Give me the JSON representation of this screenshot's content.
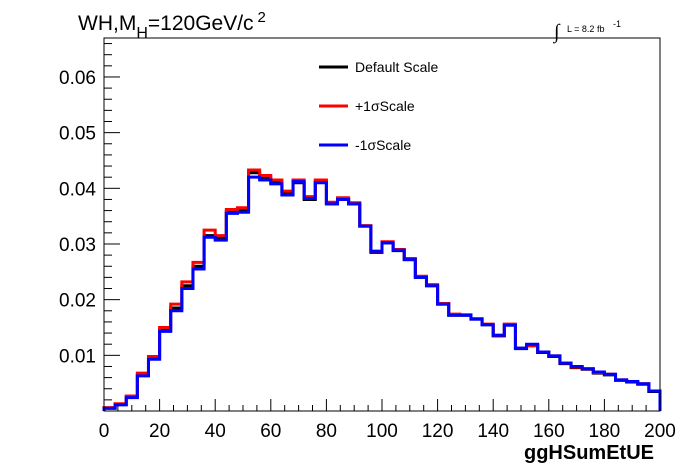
{
  "chart_data": {
    "type": "line",
    "step": true,
    "title_parts": {
      "main": "WH,M",
      "sub": "H",
      "rest": "=120GeV/c",
      "sup": "2"
    },
    "lumi_parts": {
      "integral": "∫",
      "text": "L = 8.2 fb",
      "sup": "-1"
    },
    "xlabel": "ggHSumEtUE",
    "ylabel": "",
    "xlim": [
      0,
      200
    ],
    "ylim": [
      0,
      0.067
    ],
    "x_ticks": [
      "0",
      "20",
      "40",
      "60",
      "80",
      "100",
      "120",
      "140",
      "160",
      "180",
      "200"
    ],
    "y_ticks": [
      "0.01",
      "0.02",
      "0.03",
      "0.04",
      "0.05",
      "0.06"
    ],
    "grid": false,
    "legend_position": "top-center",
    "bin_edges": [
      0,
      4,
      8,
      12,
      16,
      20,
      24,
      28,
      32,
      36,
      40,
      44,
      48,
      52,
      56,
      60,
      64,
      68,
      72,
      76,
      80,
      84,
      88,
      92,
      96,
      100,
      104,
      108,
      112,
      116,
      120,
      124,
      128,
      132,
      136,
      140,
      144,
      148,
      152,
      156,
      160,
      164,
      168,
      172,
      176,
      180,
      184,
      188,
      192,
      196,
      200
    ],
    "series": [
      {
        "name": "Default Scale",
        "color": "#000000",
        "values": [
          0.0005,
          0.0012,
          0.0025,
          0.0065,
          0.0095,
          0.0145,
          0.0185,
          0.0225,
          0.026,
          0.0315,
          0.031,
          0.0358,
          0.036,
          0.0428,
          0.0418,
          0.041,
          0.039,
          0.041,
          0.038,
          0.0412,
          0.0372,
          0.038,
          0.0372,
          0.0332,
          0.0285,
          0.0302,
          0.0288,
          0.0272,
          0.024,
          0.0225,
          0.0192,
          0.0172,
          0.0172,
          0.0165,
          0.0155,
          0.0135,
          0.0155,
          0.0112,
          0.0118,
          0.0105,
          0.0098,
          0.0085,
          0.0078,
          0.0075,
          0.0068,
          0.0065,
          0.0055,
          0.0052,
          0.0048,
          0.0035
        ]
      },
      {
        "name": "+1σScale",
        "color": "#ff0000",
        "values": [
          0.0006,
          0.0013,
          0.0027,
          0.0068,
          0.0098,
          0.015,
          0.0192,
          0.0232,
          0.0267,
          0.0325,
          0.0315,
          0.0362,
          0.0365,
          0.0433,
          0.0423,
          0.0415,
          0.0395,
          0.0415,
          0.0385,
          0.0415,
          0.0375,
          0.0383,
          0.0374,
          0.0333,
          0.0287,
          0.0304,
          0.029,
          0.0274,
          0.0242,
          0.0227,
          0.0193,
          0.0174,
          0.0173,
          0.0166,
          0.0156,
          0.0136,
          0.0156,
          0.0113,
          0.0117,
          0.0106,
          0.0099,
          0.0086,
          0.0079,
          0.0076,
          0.0069,
          0.0066,
          0.0056,
          0.0053,
          0.0049,
          0.0036
        ]
      },
      {
        "name": "-1σScale",
        "color": "#0000ff",
        "values": [
          0.0005,
          0.0011,
          0.0024,
          0.0063,
          0.0093,
          0.0143,
          0.018,
          0.022,
          0.0255,
          0.0312,
          0.0307,
          0.0355,
          0.0357,
          0.042,
          0.0415,
          0.0408,
          0.0388,
          0.0412,
          0.0382,
          0.041,
          0.0372,
          0.038,
          0.0372,
          0.0332,
          0.0287,
          0.0302,
          0.0289,
          0.0272,
          0.024,
          0.0225,
          0.0192,
          0.0172,
          0.0172,
          0.0165,
          0.0155,
          0.0136,
          0.0154,
          0.0113,
          0.012,
          0.0106,
          0.0099,
          0.0086,
          0.008,
          0.0076,
          0.007,
          0.0066,
          0.0056,
          0.0053,
          0.0049,
          0.0036
        ]
      }
    ]
  }
}
